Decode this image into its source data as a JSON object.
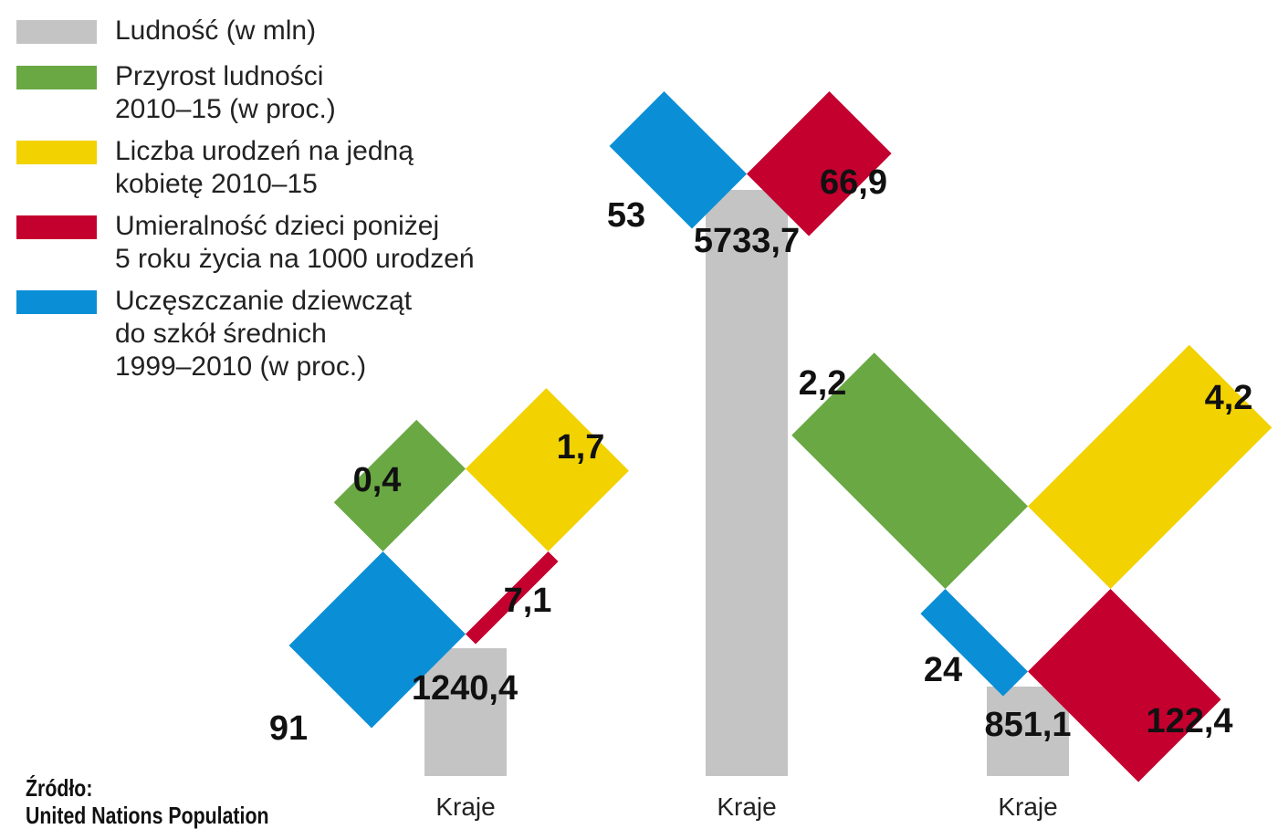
{
  "legend": [
    {
      "key": "population",
      "text": "Ludność (w mln)",
      "color": "#c4c4c4"
    },
    {
      "key": "growth",
      "text": "Przyrost ludności\n2010–15 (w proc.)",
      "color": "#6aa844"
    },
    {
      "key": "births",
      "text": "Liczba urodzeń na jedną\nkobietę 2010–15",
      "color": "#f2d200"
    },
    {
      "key": "mortality",
      "text": "Umieralność dzieci poniżej\n5 roku życia na 1000 urodzeń",
      "color": "#c4002f"
    },
    {
      "key": "school",
      "text": "Uczęszczanie dziewcząt\ndo szkół średnich\n1999–2010 (w proc.)",
      "color": "#0a8fd6"
    }
  ],
  "source": "Źródło:\nUnited Nations Population",
  "chart_data": {
    "type": "bar",
    "categories": [
      "Kraje",
      "Kraje",
      "Kraje"
    ],
    "series": [
      {
        "name": "Ludność (w mln)",
        "values": [
          1240.4,
          5733.7,
          851.1
        ],
        "labels": [
          "1240,4",
          "5733,7",
          "851,1"
        ]
      },
      {
        "name": "Przyrost ludności 2010–15 (w proc.)",
        "values": [
          0.4,
          null,
          2.2
        ],
        "labels": [
          "0,4",
          "",
          "2,2"
        ]
      },
      {
        "name": "Liczba urodzeń na jedną kobietę 2010–15",
        "values": [
          1.7,
          null,
          4.2
        ],
        "labels": [
          "1,7",
          "",
          "4,2"
        ]
      },
      {
        "name": "Umieralność dzieci poniżej 5 roku życia na 1000 urodzeń",
        "values": [
          7.1,
          66.9,
          122.4
        ],
        "labels": [
          "7,1",
          "66,9",
          "122,4"
        ]
      },
      {
        "name": "Uczęszczanie dziewcząt do szkół średnich 1999–2010 (w proc.)",
        "values": [
          91,
          53,
          24
        ],
        "labels": [
          "91",
          "53",
          "24"
        ]
      }
    ]
  }
}
